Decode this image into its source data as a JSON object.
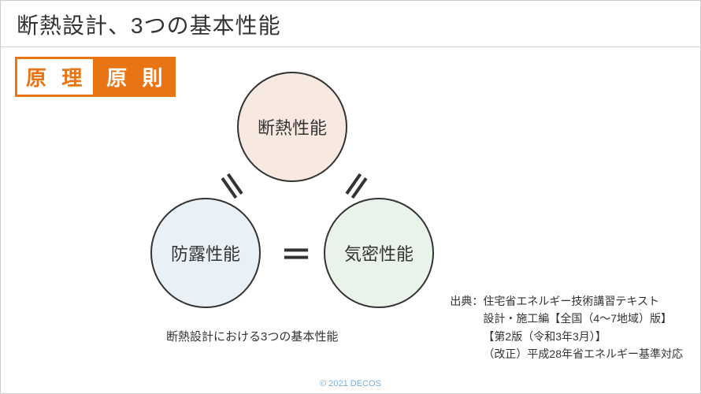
{
  "title": "断熱設計、3つの基本性能",
  "badges": {
    "left": "原 理",
    "right": "原 則"
  },
  "diagram": {
    "circles": {
      "top": {
        "label": "断熱性能",
        "fill": "#f7e9df"
      },
      "bl": {
        "label": "防露性能",
        "fill": "#e9f1f7"
      },
      "br": {
        "label": "気密性能",
        "fill": "#eaf3ea"
      }
    },
    "equals": "＝",
    "stroke": "#333333",
    "stroke_width": 2,
    "circle_diameter": 140,
    "label_fontsize": 22
  },
  "caption": "断熱設計における3つの基本性能",
  "source": {
    "line1": "出典：住宅省エネルギー技術講習テキスト",
    "line2": "設計・施工編【全国（4～7地域）版】",
    "line3": "【第2版（令和3年3月）】",
    "line4": "（改正）平成28年省エネルギー基準対応"
  },
  "footer": "© 2021 DECOS",
  "colors": {
    "accent": "#e97414",
    "text": "#333333",
    "footer": "#7badd4",
    "divider": "#d0d0d0"
  }
}
